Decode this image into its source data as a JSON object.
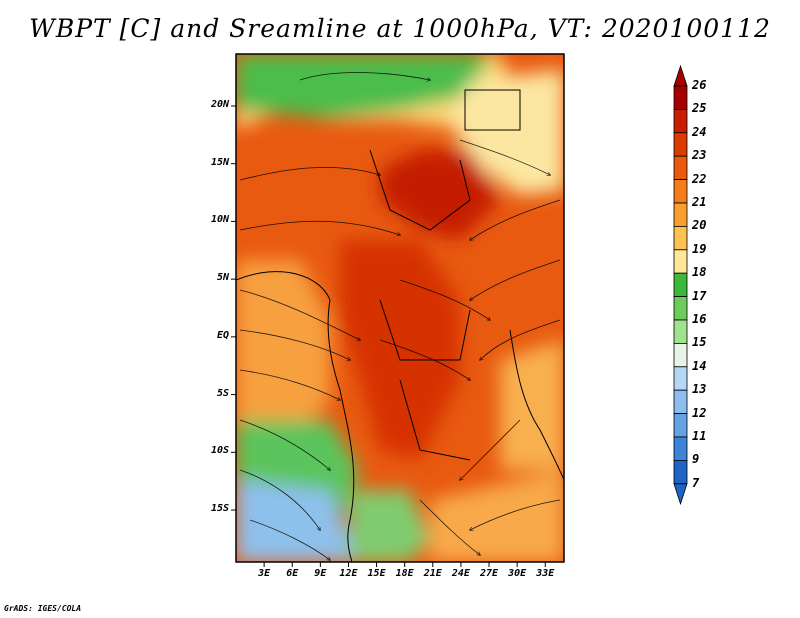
{
  "title": "WBPT [C] and Sreamline at 1000hPa, VT: 2020100112",
  "credit": "GrADS: IGES/COLA",
  "map": {
    "lat_ticks": [
      "20N",
      "15N",
      "10N",
      "5N",
      "EQ",
      "5S",
      "10S",
      "15S"
    ],
    "lon_ticks": [
      "3E",
      "6E",
      "9E",
      "12E",
      "15E",
      "18E",
      "21E",
      "24E",
      "27E",
      "30E",
      "33E"
    ],
    "lon_range": [
      0,
      35
    ],
    "lat_range": [
      -19.5,
      24.5
    ]
  },
  "colorbar": {
    "labels": [
      "26",
      "25",
      "24",
      "23",
      "22",
      "21",
      "20",
      "19",
      "18",
      "17",
      "16",
      "15",
      "14",
      "13",
      "12",
      "11",
      "9",
      "7"
    ],
    "colors": [
      "#a50000",
      "#c81e00",
      "#dc3c00",
      "#eb5a0a",
      "#f57d19",
      "#fa9f2d",
      "#fdc24f",
      "#fee796",
      "#3cb83c",
      "#6ccd5c",
      "#a0e290",
      "#e6f5e6",
      "#b4d7f5",
      "#8cbeef",
      "#64a2e4",
      "#3c84d8",
      "#1e64c8"
    ]
  }
}
